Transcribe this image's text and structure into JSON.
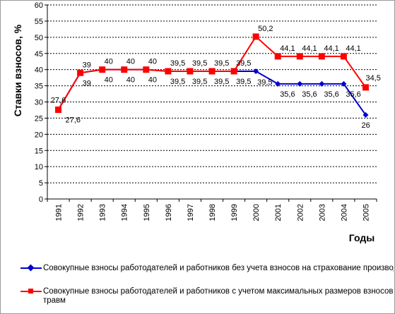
{
  "chart_data": {
    "type": "line",
    "ylabel": "Ставки взносов, %",
    "xlabel": "Годы",
    "ylim": [
      0,
      60
    ],
    "ytick_step": 5,
    "grid": true,
    "categories": [
      "1991",
      "1992",
      "1993",
      "1994",
      "1995",
      "1996",
      "1997",
      "1998",
      "1999",
      "2000",
      "2001",
      "2002",
      "2003",
      "2004",
      "2005"
    ],
    "yticks": [
      "0",
      "5",
      "10",
      "15",
      "20",
      "25",
      "30",
      "35",
      "40",
      "45",
      "50",
      "55",
      "60"
    ],
    "legend_position": "bottom",
    "series": [
      {
        "name": "Совокупные взносы работодателей и работников без учета взносов на страхование производственных травм",
        "color": "#0000cc",
        "marker": "diamond",
        "values": [
          27.6,
          39,
          40,
          40,
          40,
          39.5,
          39.5,
          39.5,
          39.5,
          39.5,
          35.6,
          35.6,
          35.6,
          35.6,
          26
        ],
        "labels": [
          "27,6",
          "39",
          "40",
          "40",
          "40",
          "39,5",
          "39,5",
          "39,5",
          "39,5",
          "39,5",
          "35,6",
          "35,6",
          "35,6",
          "35,6",
          "26"
        ]
      },
      {
        "name": "Совокупные взносы работодателей и работников с учетом максимальных размеров взносов на страхование производственных травм",
        "color": "#ff0000",
        "marker": "square",
        "values": [
          27.6,
          39,
          40,
          40,
          40,
          39.5,
          39.5,
          39.5,
          39.5,
          50.2,
          44.1,
          44.1,
          44.1,
          44.1,
          34.5
        ],
        "labels": [
          "27,6",
          "39",
          "40",
          "40",
          "40",
          "39,5",
          "39,5",
          "39,5",
          "39,5",
          "50,2",
          "44,1",
          "44,1",
          "44,1",
          "44,1",
          "34,5"
        ]
      }
    ]
  }
}
